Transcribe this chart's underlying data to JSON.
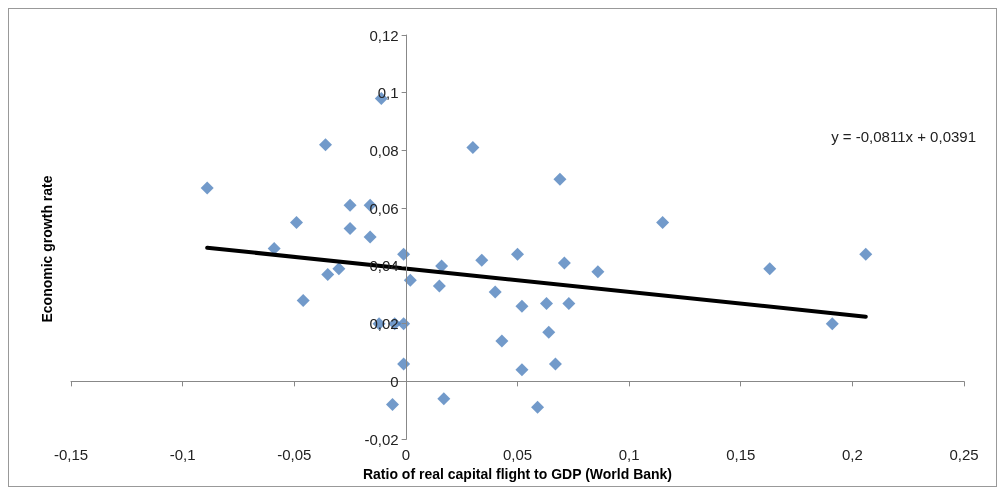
{
  "chart_data": {
    "type": "scatter",
    "xlabel": "Ratio of real capital flight to GDP (World Bank)",
    "ylabel": "Economic growth rate",
    "annotations": [
      "y = -0,0811x + 0,0391"
    ],
    "xlim": [
      -0.15,
      0.25
    ],
    "ylim": [
      -0.02,
      0.12
    ],
    "xticks": [
      {
        "value": -0.15,
        "label": "-0,15"
      },
      {
        "value": -0.1,
        "label": "-0,1"
      },
      {
        "value": -0.05,
        "label": "-0,05"
      },
      {
        "value": 0,
        "label": "0"
      },
      {
        "value": 0.05,
        "label": "0,05"
      },
      {
        "value": 0.1,
        "label": "0,1"
      },
      {
        "value": 0.15,
        "label": "0,15"
      },
      {
        "value": 0.2,
        "label": "0,2"
      },
      {
        "value": 0.25,
        "label": "0,25"
      }
    ],
    "yticks": [
      {
        "value": -0.02,
        "label": "-0,02"
      },
      {
        "value": 0,
        "label": "0"
      },
      {
        "value": 0.02,
        "label": "0,02"
      },
      {
        "value": 0.04,
        "label": "0,04"
      },
      {
        "value": 0.06,
        "label": "0,06"
      },
      {
        "value": 0.08,
        "label": "0,08"
      },
      {
        "value": 0.1,
        "label": "0,1"
      },
      {
        "value": 0.12,
        "label": "0,12"
      }
    ],
    "marker": "diamond",
    "series": [
      {
        "color": "#4f81bd",
        "x": [
          -0.089,
          -0.059,
          -0.049,
          -0.046,
          -0.036,
          -0.035,
          -0.03,
          -0.025,
          -0.025,
          -0.016,
          -0.016,
          -0.011,
          -0.012,
          -0.005,
          -0.001,
          -0.006,
          -0.001,
          -0.001,
          0.002,
          0.015,
          0.016,
          0.017,
          0.03,
          0.034,
          0.04,
          0.043,
          0.05,
          0.052,
          0.052,
          0.059,
          0.063,
          0.064,
          0.067,
          0.069,
          0.071,
          0.073,
          0.086,
          0.115,
          0.163,
          0.191,
          0.206
        ],
        "values": [
          0.067,
          0.046,
          0.055,
          0.028,
          0.082,
          0.037,
          0.039,
          0.061,
          0.053,
          0.061,
          0.05,
          0.098,
          0.02,
          0.02,
          0.02,
          -0.008,
          0.044,
          0.006,
          0.035,
          0.033,
          0.04,
          -0.006,
          0.081,
          0.042,
          0.031,
          0.014,
          0.044,
          0.026,
          0.004,
          -0.009,
          0.027,
          0.017,
          0.006,
          0.07,
          0.041,
          0.027,
          0.038,
          0.055,
          0.039,
          0.02,
          0.044
        ]
      },
      {
        "type": "line",
        "color": "#000000",
        "line_style": "solid",
        "marker": "none",
        "x": [
          -0.089,
          0.206
        ],
        "values": [
          0.0463,
          0.0224
        ]
      }
    ]
  }
}
